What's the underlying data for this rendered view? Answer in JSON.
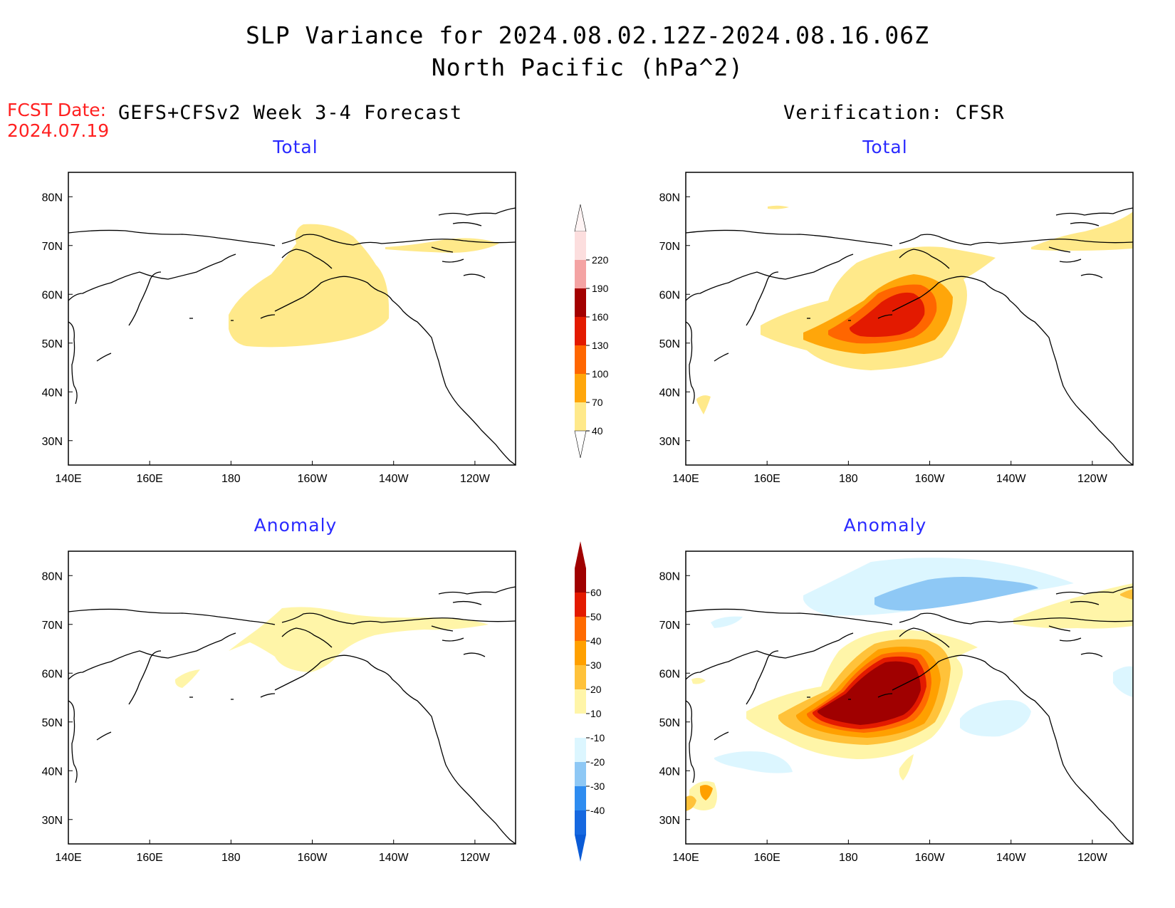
{
  "title": {
    "line1": "SLP Variance for 2024.08.02.12Z-2024.08.16.06Z",
    "line2": "North Pacific (hPa^2)"
  },
  "fcst_date": {
    "label": "FCST Date:",
    "value": "2024.07.19"
  },
  "headers": {
    "left": "GEFS+CFSv2 Week 3-4 Forecast",
    "right": "Verification: CFSR"
  },
  "panel_titles": {
    "top_left": "Total",
    "top_right": "Total",
    "bottom_left": "Anomaly",
    "bottom_right": "Anomaly"
  },
  "map_axes": {
    "lon_ticks": [
      "140E",
      "160E",
      "180",
      "160W",
      "140W",
      "120W"
    ],
    "lat_ticks": [
      "80N",
      "70N",
      "60N",
      "50N",
      "40N",
      "30N"
    ],
    "lon_range": [
      140,
      250
    ],
    "lat_range": [
      25,
      85
    ]
  },
  "colorbar_total": {
    "labels": [
      "40",
      "70",
      "100",
      "130",
      "160",
      "190",
      "220"
    ],
    "colors": [
      "#ffe98a",
      "#ffa60a",
      "#ff6600",
      "#e31a00",
      "#a30000",
      "#f4a3a3",
      "#fcdede"
    ]
  },
  "colorbar_anomaly": {
    "labels": [
      "-40",
      "-30",
      "-20",
      "-10",
      "10",
      "20",
      "30",
      "40",
      "50",
      "60"
    ],
    "colors": [
      "#1668e0",
      "#2e8cf0",
      "#8ec8f5",
      "#dcf6ff",
      "#ffffff",
      "#fff5a8",
      "#ffc23a",
      "#ffa000",
      "#ff6a00",
      "#e31a00",
      "#a00000"
    ]
  },
  "colors": {
    "title_fcst": "#ff2020",
    "panel_title": "#2a2aff"
  }
}
